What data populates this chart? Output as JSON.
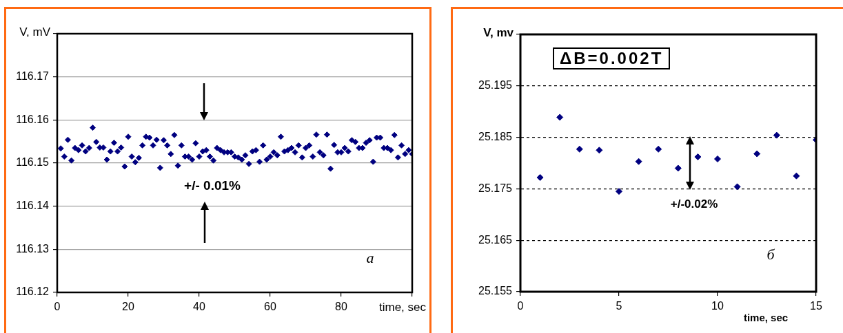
{
  "chart_data": [
    {
      "type": "scatter",
      "xlabel": "time, sec",
      "ylabel": "V, mV",
      "color": "#000080",
      "marker": "diamond",
      "grid": "y",
      "x": [
        1,
        2,
        3,
        4,
        5,
        6,
        7,
        8,
        9,
        10,
        11,
        12,
        13,
        14,
        15,
        16,
        17,
        18,
        19,
        20,
        21,
        22,
        23,
        24,
        25,
        26,
        27,
        28,
        29,
        30,
        31,
        32,
        33,
        34,
        35,
        36,
        37,
        38,
        39,
        40,
        41,
        42,
        43,
        44,
        45,
        46,
        47,
        48,
        49,
        50,
        51,
        52,
        53,
        54,
        55,
        56,
        57,
        58,
        59,
        60,
        61,
        62,
        63,
        64,
        65,
        66,
        67,
        68,
        69,
        70,
        71,
        72,
        73,
        74,
        75,
        76,
        77,
        78,
        79,
        80,
        81,
        82,
        83,
        84,
        85,
        86,
        87,
        88,
        89,
        90,
        91,
        92,
        93,
        94,
        95,
        96,
        97,
        98,
        99,
        100
      ],
      "values": [
        116.1534,
        116.1515,
        116.1554,
        116.1506,
        116.1535,
        116.153,
        116.1541,
        116.1527,
        116.1535,
        116.1582,
        116.1549,
        116.1536,
        116.1536,
        116.1508,
        116.1527,
        116.1547,
        116.1527,
        116.1536,
        116.1492,
        116.1561,
        116.1515,
        116.1502,
        116.1512,
        116.1541,
        116.1561,
        116.1559,
        116.1541,
        116.1554,
        116.1489,
        116.1553,
        116.1541,
        116.1521,
        116.1565,
        116.1494,
        116.1541,
        116.1515,
        116.1515,
        116.1508,
        116.1546,
        116.1515,
        116.1527,
        116.153,
        116.1515,
        116.1506,
        116.1535,
        116.153,
        116.1525,
        116.1525,
        116.1525,
        116.1515,
        116.1513,
        116.1508,
        116.1518,
        116.1498,
        116.1527,
        116.153,
        116.1503,
        116.1541,
        116.1508,
        116.1515,
        116.1525,
        116.1518,
        116.1561,
        116.1527,
        116.153,
        116.1535,
        116.1525,
        116.1541,
        116.1513,
        116.1535,
        116.1541,
        116.1515,
        116.1566,
        116.1525,
        116.1518,
        116.1566,
        116.1487,
        116.1542,
        116.1525,
        116.1525,
        116.1535,
        116.1527,
        116.1553,
        116.1549,
        116.1535,
        116.1535,
        116.1547,
        116.1553,
        116.1503,
        116.1559,
        116.1559,
        116.1535,
        116.1535,
        116.153,
        116.1565,
        116.1513,
        116.1541,
        116.1521,
        116.153,
        116.1521
      ],
      "xlim": [
        0,
        100
      ],
      "xticks": [
        0,
        20,
        40,
        60,
        80,
        {
          "value": 100,
          "label": null
        }
      ],
      "ylim": [
        116.12,
        116.18
      ],
      "yticks": [
        116.12,
        116.13,
        116.14,
        116.15,
        116.16,
        116.17,
        {
          "value": 116.18,
          "label": null
        }
      ],
      "annotations": [
        "+/- 0.01%",
        "a"
      ]
    },
    {
      "type": "scatter",
      "xlabel": "time, sec",
      "ylabel": "V, mv",
      "color": "#000080",
      "marker": "diamond",
      "grid": "y",
      "x": [
        1,
        2,
        3,
        4,
        5,
        6,
        7,
        8,
        9,
        10,
        11,
        12,
        13,
        14,
        15
      ],
      "values": [
        25.1772,
        25.1889,
        25.1827,
        25.1825,
        25.1745,
        25.1803,
        25.1827,
        25.179,
        25.1812,
        25.1808,
        25.1754,
        25.1818,
        25.1854,
        25.1775,
        25.1845
      ],
      "xlim": [
        0,
        15
      ],
      "xticks": [
        0,
        5,
        10,
        15
      ],
      "ylim": [
        25.155,
        25.205
      ],
      "yticks": [
        25.155,
        25.165,
        25.175,
        25.185,
        25.195,
        {
          "value": 25.205,
          "label": null
        }
      ],
      "annotations": [
        "ΔB=0.002T",
        "+/-0.02%",
        "б"
      ]
    }
  ]
}
